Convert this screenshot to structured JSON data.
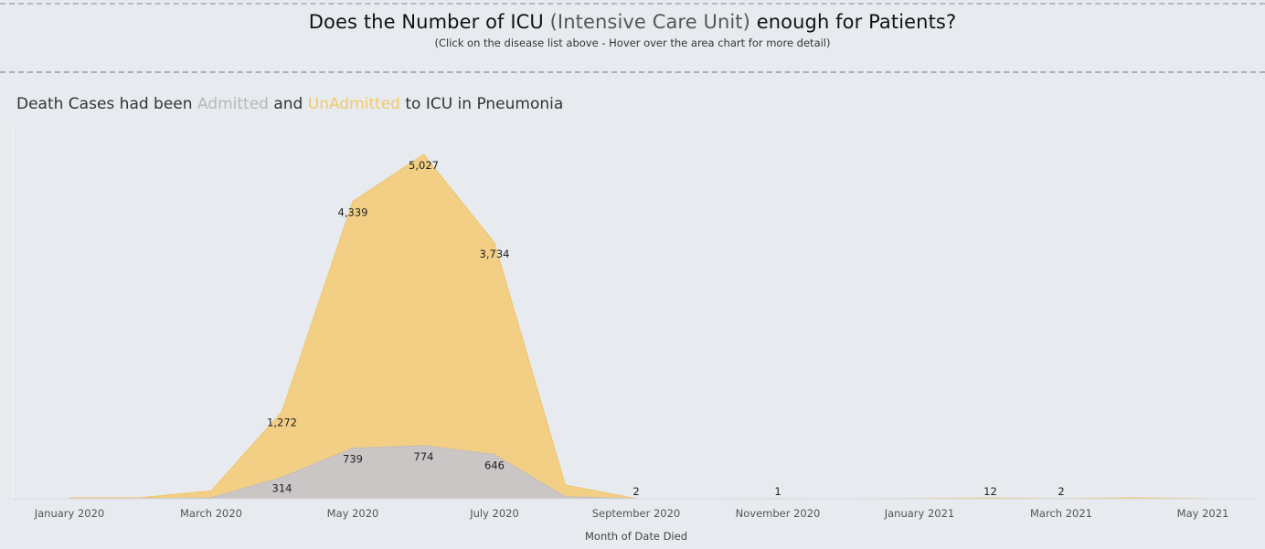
{
  "header": {
    "title_pre": "Does the Number of ICU ",
    "title_paren": "(Intensive Care Unit)",
    "title_post": " enough for Patients?",
    "subtitle": "(Click on the disease list above - Hover over the area chart for more detail)"
  },
  "chart_data": {
    "type": "area",
    "title_parts": {
      "p1": "Death Cases had been ",
      "admitted": "Admitted",
      "p2": " and ",
      "unadmitted": "UnAdmitted",
      "p3": " to ICU in Pneumonia"
    },
    "xlabel": "Month of Date Died",
    "ylabel": "",
    "x": [
      "2020-01",
      "2020-02",
      "2020-03",
      "2020-04",
      "2020-05",
      "2020-06",
      "2020-07",
      "2020-08",
      "2020-09",
      "2020-10",
      "2020-11",
      "2020-12",
      "2021-01",
      "2021-02",
      "2021-03",
      "2021-04",
      "2021-05"
    ],
    "x_tick_labels": [
      {
        "x": "2020-01",
        "label": "January 2020"
      },
      {
        "x": "2020-03",
        "label": "March 2020"
      },
      {
        "x": "2020-05",
        "label": "May 2020"
      },
      {
        "x": "2020-07",
        "label": "July 2020"
      },
      {
        "x": "2020-09",
        "label": "September 2020"
      },
      {
        "x": "2020-11",
        "label": "November 2020"
      },
      {
        "x": "2021-01",
        "label": "January 2021"
      },
      {
        "x": "2021-03",
        "label": "March 2021"
      },
      {
        "x": "2021-05",
        "label": "May 2021"
      }
    ],
    "ylim": [
      0,
      5200
    ],
    "grid": false,
    "series": [
      {
        "name": "Admitted",
        "color": "#cbc6c6",
        "values": [
          3,
          4,
          14,
          314,
          739,
          774,
          646,
          30,
          1,
          0,
          0,
          0,
          0,
          0,
          0,
          0,
          0
        ]
      },
      {
        "name": "UnAdmitted",
        "color": "#f2cf84",
        "values": [
          15,
          16,
          115,
          1272,
          4339,
          5027,
          3734,
          200,
          2,
          0,
          1,
          0,
          4,
          12,
          2,
          15,
          3
        ]
      }
    ],
    "data_labels": [
      {
        "series": "UnAdmitted",
        "x": "2020-04",
        "label": "1,272"
      },
      {
        "series": "UnAdmitted",
        "x": "2020-05",
        "label": "4,339"
      },
      {
        "series": "UnAdmitted",
        "x": "2020-06",
        "label": "5,027"
      },
      {
        "series": "UnAdmitted",
        "x": "2020-07",
        "label": "3,734"
      },
      {
        "series": "UnAdmitted",
        "x": "2020-09",
        "label": "2"
      },
      {
        "series": "UnAdmitted",
        "x": "2020-11",
        "label": "1"
      },
      {
        "series": "UnAdmitted",
        "x": "2021-02",
        "label": "12"
      },
      {
        "series": "UnAdmitted",
        "x": "2021-03",
        "label": "2"
      },
      {
        "series": "Admitted",
        "x": "2020-04",
        "label": "314"
      },
      {
        "series": "Admitted",
        "x": "2020-05",
        "label": "739"
      },
      {
        "series": "Admitted",
        "x": "2020-06",
        "label": "774"
      },
      {
        "series": "Admitted",
        "x": "2020-07",
        "label": "646"
      }
    ]
  }
}
